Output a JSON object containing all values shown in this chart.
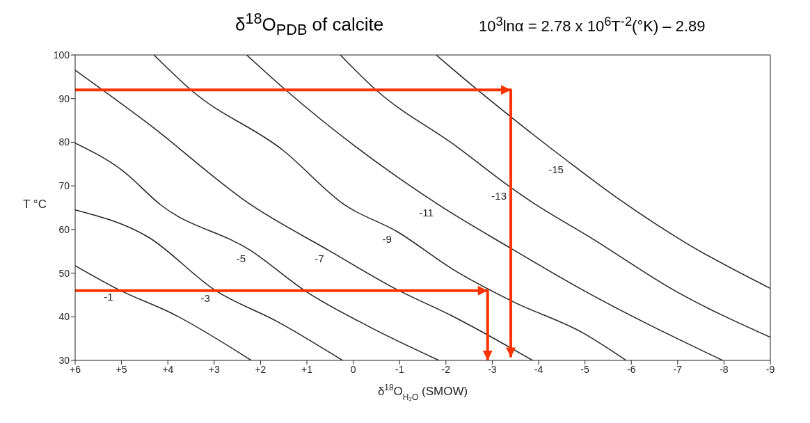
{
  "chart_data": {
    "type": "line",
    "xlabel": "δ$^{18}$O$_{H₂O}$ (SMOW)",
    "ylabel": "T °C",
    "annotations": [
      "δ$^{18}$O$_{PDB}$ of calcite",
      "10$^{3}$lnα = 2.78 x 10$^{6}$T$^{-2}$(°K) – 2.89"
    ],
    "xlim": [
      6,
      -9
    ],
    "xticks": [
      {
        "value": 6,
        "label": "+6"
      },
      {
        "value": 5,
        "label": "+5"
      },
      {
        "value": 4,
        "label": "+4"
      },
      {
        "value": 3,
        "label": "+3"
      },
      {
        "value": 2,
        "label": "+2"
      },
      {
        "value": 1,
        "label": "+1"
      },
      0,
      -1,
      -2,
      -3,
      -4,
      -5,
      -6,
      -7,
      -8,
      -9
    ],
    "ylim": [
      30,
      100
    ],
    "yticks": [
      30,
      40,
      50,
      60,
      70,
      80,
      90,
      100
    ],
    "marker": "none",
    "series": [
      {
        "name": "-1",
        "color": "#222222",
        "x": [
          6,
          5.06,
          3.88,
          2.2
        ],
        "values": [
          51.7,
          46.2,
          40.6,
          30
        ]
      },
      {
        "name": "-3",
        "color": "#222222",
        "x": [
          6,
          4.43,
          2.97,
          1.62,
          0.23
        ],
        "values": [
          64.5,
          58.3,
          46,
          38.8,
          30
        ]
      },
      {
        "name": "-5",
        "color": "#222222",
        "x": [
          6,
          4.99,
          4.15,
          2.2,
          1.02,
          -0.33,
          -1.85
        ],
        "values": [
          79.8,
          73.6,
          65.6,
          55.1,
          45.8,
          37.8,
          30
        ]
      },
      {
        "name": "-7",
        "color": "#222222",
        "x": [
          6,
          4.43,
          2.2,
          0.51,
          -0.95,
          -2.13,
          -3.87
        ],
        "values": [
          96.5,
          84.3,
          65.6,
          55.1,
          46.2,
          40.2,
          30
        ]
      },
      {
        "name": "-9",
        "color": "#222222",
        "x": [
          4.3,
          3.47,
          1.52,
          0.18,
          -0.95,
          -2.13,
          -3.48,
          -4.94,
          -5.89
        ],
        "values": [
          100,
          91.7,
          78.2,
          65.6,
          59.5,
          51,
          43.3,
          36.4,
          30
        ]
      },
      {
        "name": "-11",
        "color": "#222222",
        "x": [
          2.3,
          1.45,
          -1.85,
          -3.43,
          -4.94,
          -7.97
        ],
        "values": [
          100,
          91.9,
          65.6,
          55.5,
          46.2,
          30
        ]
      },
      {
        "name": "-13",
        "color": "#222222",
        "x": [
          0.28,
          -0.5,
          -2.22,
          -3.43,
          -3.81,
          -5.16,
          -6.9,
          -9
        ],
        "values": [
          100,
          91.9,
          79.1,
          69.4,
          66.6,
          57.9,
          46.2,
          35.3
        ]
      },
      {
        "name": "-15",
        "color": "#222222",
        "x": [
          -1.79,
          -2.13,
          -4.66,
          -5.78,
          -7.18,
          -9
        ],
        "values": [
          100,
          96.9,
          75.4,
          66.6,
          56.9,
          46.5
        ]
      },
      {
        "color": "#ff3300",
        "x": [
          6,
          -3.4,
          -3.4
        ],
        "values": [
          92,
          92,
          30.7
        ]
      },
      {
        "color": "#ff3300",
        "x": [
          6,
          -2.9,
          -2.9
        ],
        "values": [
          46,
          46,
          30
        ]
      }
    ]
  }
}
